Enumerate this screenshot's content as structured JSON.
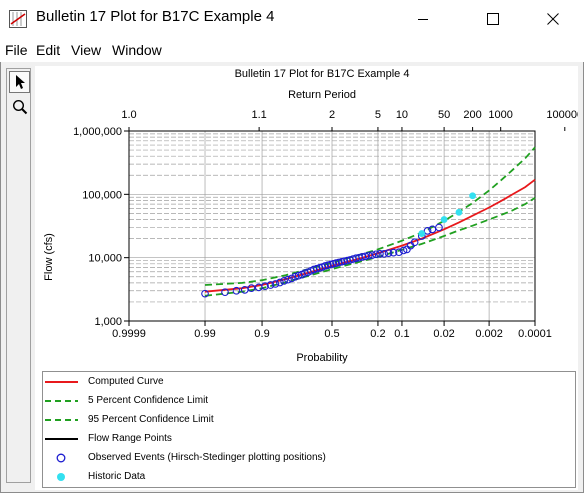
{
  "window": {
    "title": "Bulletin 17 Plot for B17C Example 4",
    "minimize_icon": "minimize-icon",
    "maximize_icon": "maximize-icon",
    "close_icon": "close-icon"
  },
  "menu": [
    "File",
    "Edit",
    "View",
    "Window"
  ],
  "toolbar": {
    "tools": [
      "pointer-icon",
      "zoom-magnifier-icon"
    ]
  },
  "colors": {
    "computed": "#e8191c",
    "confidence": "#20a020",
    "observed": "#1c1cd0",
    "historic": "#33e0f0",
    "flow_range": "#000000",
    "grid": "#a0a0a0"
  },
  "chart_data": {
    "type": "scatter",
    "title": "Bulletin 17 Plot for B17C Example 4",
    "top_axis_label": "Return Period",
    "top_ticks": [
      "1.0",
      "1.1",
      "2",
      "5",
      "10",
      "50",
      "200",
      "1000",
      "100000"
    ],
    "top_tick_values": [
      1.0001,
      1.1,
      2,
      5,
      10,
      50,
      200,
      1000,
      100000
    ],
    "xlabel": "Probability",
    "x_ticks": [
      "0.9999",
      "0.99",
      "0.9",
      "0.5",
      "0.2",
      "0.1",
      "0.02",
      "0.002",
      "0.0001"
    ],
    "x_tick_values": [
      0.9999,
      0.99,
      0.9,
      0.5,
      0.2,
      0.1,
      0.02,
      0.002,
      0.0001
    ],
    "x_scale": "normal-probability (exceedance, decreasing left to right)",
    "ylabel": "Flow (cfs)",
    "y_ticks": [
      "1,000",
      "10,000",
      "100,000",
      "1,000,000"
    ],
    "y_tick_values": [
      1000,
      10000,
      100000,
      1000000
    ],
    "y_scale": "log",
    "ylim": [
      1000,
      1000000
    ],
    "grid": true,
    "series": [
      {
        "name": "Computed Curve",
        "style": "solid",
        "x": [
          0.99,
          0.95,
          0.9,
          0.8,
          0.7,
          0.5,
          0.3,
          0.2,
          0.1,
          0.05,
          0.02,
          0.01,
          0.005,
          0.002,
          0.001,
          0.0005,
          0.0002,
          0.0001
        ],
        "y": [
          2900,
          3300,
          3700,
          4600,
          5500,
          7400,
          9800,
          11700,
          15500,
          20000,
          28000,
          36000,
          46000,
          62000,
          78000,
          98000,
          130000,
          170000
        ]
      },
      {
        "name": "5 Percent Confidence Limit",
        "style": "dashed",
        "x": [
          0.99,
          0.95,
          0.9,
          0.8,
          0.7,
          0.5,
          0.3,
          0.2,
          0.1,
          0.05,
          0.02,
          0.01,
          0.005,
          0.002,
          0.001,
          0.0005,
          0.0002,
          0.0001
        ],
        "y": [
          3700,
          4000,
          4400,
          5300,
          6300,
          8300,
          11200,
          13500,
          18500,
          25000,
          38000,
          53000,
          73000,
          115000,
          165000,
          235000,
          370000,
          550000
        ]
      },
      {
        "name": "95 Percent Confidence Limit",
        "style": "dashed",
        "x": [
          0.99,
          0.95,
          0.9,
          0.8,
          0.7,
          0.5,
          0.3,
          0.2,
          0.1,
          0.05,
          0.02,
          0.01,
          0.005,
          0.002,
          0.001,
          0.0005,
          0.0002,
          0.0001
        ],
        "y": [
          2500,
          2900,
          3300,
          4100,
          4900,
          6600,
          8700,
          10300,
          13300,
          16500,
          22000,
          27000,
          32000,
          40000,
          47000,
          55000,
          70000,
          88000
        ]
      },
      {
        "name": "Flow Range Points",
        "style": "solid",
        "x": [],
        "y": []
      },
      {
        "name": "Observed Events (Hirsch-Stedinger plotting positions)",
        "style": "open-circle",
        "x": [
          0.99,
          0.975,
          0.96,
          0.945,
          0.93,
          0.91,
          0.89,
          0.87,
          0.85,
          0.83,
          0.81,
          0.79,
          0.77,
          0.75,
          0.73,
          0.71,
          0.69,
          0.67,
          0.65,
          0.63,
          0.61,
          0.59,
          0.57,
          0.55,
          0.53,
          0.51,
          0.49,
          0.47,
          0.45,
          0.43,
          0.41,
          0.39,
          0.37,
          0.35,
          0.33,
          0.31,
          0.29,
          0.27,
          0.25,
          0.23,
          0.21,
          0.19,
          0.17,
          0.15,
          0.13,
          0.11,
          0.095,
          0.085,
          0.075,
          0.065,
          0.05,
          0.04,
          0.033,
          0.025
        ],
        "y": [
          2700,
          2850,
          3000,
          3100,
          3300,
          3400,
          3550,
          3700,
          3850,
          4050,
          4300,
          4500,
          4700,
          5000,
          5200,
          5400,
          5700,
          5900,
          6200,
          6500,
          6700,
          6900,
          7100,
          7400,
          7600,
          7800,
          8000,
          8200,
          8400,
          8600,
          8800,
          9000,
          9200,
          9500,
          9800,
          10000,
          10300,
          10500,
          10800,
          11000,
          11300,
          11500,
          11500,
          11800,
          12000,
          12200,
          13000,
          13500,
          15500,
          17500,
          22000,
          26500,
          28000,
          30000
        ]
      },
      {
        "name": "Historic Data",
        "style": "filled-circle",
        "x": [
          0.05,
          0.02,
          0.01,
          0.005
        ],
        "y": [
          24000,
          40000,
          52000,
          95000
        ]
      }
    ]
  },
  "legend": [
    {
      "label": "Computed Curve",
      "symbol": "line-solid-red"
    },
    {
      "label": "5 Percent Confidence Limit",
      "symbol": "line-dashed-green"
    },
    {
      "label": "95 Percent Confidence Limit",
      "symbol": "line-dashed-green"
    },
    {
      "label": "Flow Range Points",
      "symbol": "line-solid-black"
    },
    {
      "label": "Observed Events (Hirsch-Stedinger plotting positions)",
      "symbol": "open-circle-blue"
    },
    {
      "label": "Historic Data",
      "symbol": "filled-circle-cyan"
    }
  ]
}
